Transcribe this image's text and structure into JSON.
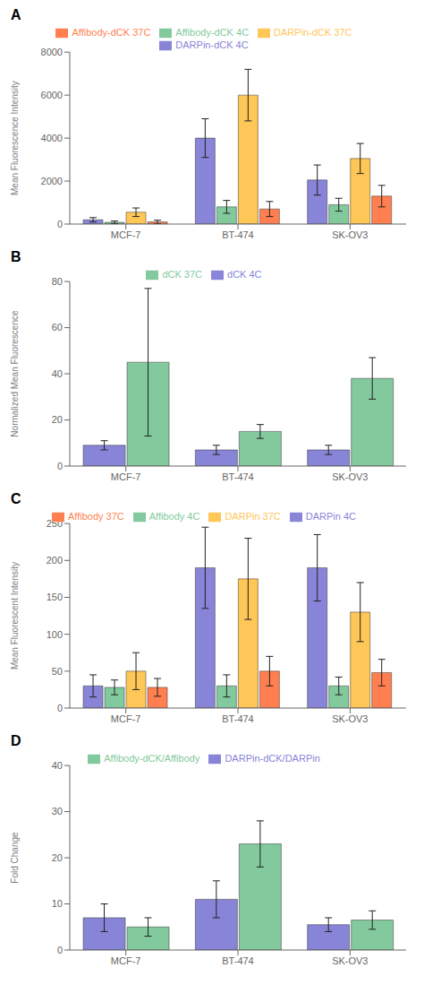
{
  "chart_data": [
    {
      "type": "bar",
      "title": "A",
      "ylabel": "Mean Fluorescence Intensity",
      "ylim": [
        0,
        8000
      ],
      "yticks": [
        0,
        2000,
        4000,
        6000,
        8000
      ],
      "legend": "top",
      "categories": [
        "MCF-7",
        "BT-474",
        "SK-OV3"
      ],
      "series": [
        {
          "name": "DARPin-dCK 4C",
          "values": [
            200,
            4000,
            2050
          ],
          "errors": [
            100,
            900,
            700
          ]
        },
        {
          "name": "Affibody-dCK 4C",
          "values": [
            80,
            800,
            900
          ],
          "errors": [
            60,
            300,
            300
          ]
        },
        {
          "name": "DARPin-dCK 37C",
          "values": [
            550,
            6000,
            3050
          ],
          "errors": [
            200,
            1200,
            700
          ]
        },
        {
          "name": "Affibody-dCK 37C",
          "values": [
            100,
            700,
            1300
          ],
          "errors": [
            80,
            350,
            500
          ]
        }
      ]
    },
    {
      "type": "bar",
      "title": "B",
      "ylabel": "Normalized Mean Fluorescence",
      "ylim": [
        0,
        80
      ],
      "yticks": [
        0,
        20,
        40,
        60,
        80
      ],
      "legend": "top",
      "categories": [
        "MCF-7",
        "BT-474",
        "SK-OV3"
      ],
      "series": [
        {
          "name": "dCK 4C",
          "values": [
            9,
            7,
            7
          ],
          "errors": [
            2,
            2,
            2
          ]
        },
        {
          "name": "dCK 37C",
          "values": [
            45,
            15,
            38
          ],
          "errors": [
            32,
            3,
            9
          ]
        }
      ]
    },
    {
      "type": "bar",
      "title": "C",
      "ylabel": "Mean Fluorescent Intensity",
      "ylim": [
        0,
        250
      ],
      "yticks": [
        0,
        50,
        100,
        150,
        200,
        250
      ],
      "legend": "top",
      "categories": [
        "MCF-7",
        "BT-474",
        "SK-OV3"
      ],
      "series": [
        {
          "name": "DARPin 4C",
          "values": [
            30,
            190,
            190
          ],
          "errors": [
            15,
            55,
            45
          ]
        },
        {
          "name": "Affibody 4C",
          "values": [
            28,
            30,
            30
          ],
          "errors": [
            10,
            15,
            12
          ]
        },
        {
          "name": "DARPin 37C",
          "values": [
            50,
            175,
            130
          ],
          "errors": [
            25,
            55,
            40
          ]
        },
        {
          "name": "Affibody 37C",
          "values": [
            28,
            50,
            48
          ],
          "errors": [
            12,
            20,
            18
          ]
        }
      ]
    },
    {
      "type": "bar",
      "title": "D",
      "ylabel": "Fold Change",
      "ylim": [
        0,
        40
      ],
      "yticks": [
        0,
        10,
        20,
        30,
        40
      ],
      "legend": "top",
      "categories": [
        "MCF-7",
        "BT-474",
        "SK-OV3"
      ],
      "series": [
        {
          "name": "DARPin-dCK/DARPin",
          "values": [
            7,
            11,
            5.5
          ],
          "errors": [
            3,
            4,
            1.5
          ]
        },
        {
          "name": "Affibody-dCK/Affibody",
          "values": [
            5,
            23,
            6.5
          ],
          "errors": [
            2,
            5,
            2
          ]
        }
      ]
    }
  ]
}
